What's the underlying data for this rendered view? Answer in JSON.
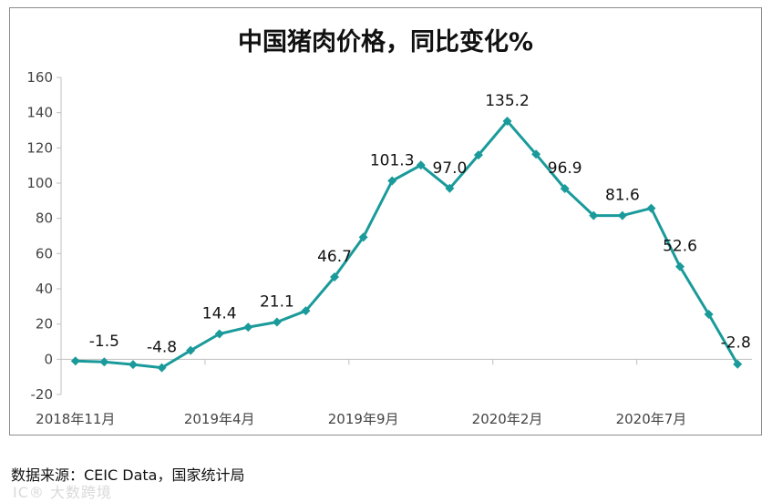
{
  "chart_data": {
    "type": "line",
    "title": "中国猪肉价格，同比变化%",
    "xlabel": "",
    "ylabel": "",
    "ylim": [
      -20,
      160
    ],
    "yticks": [
      "160",
      "140",
      "120",
      "100",
      "80",
      "60",
      "40",
      "20",
      "0",
      "-20"
    ],
    "x_tick_labels": [
      {
        "index": 0,
        "label": "2018年11月"
      },
      {
        "index": 5,
        "label": "2019年4月"
      },
      {
        "index": 10,
        "label": "2019年9月"
      },
      {
        "index": 15,
        "label": "2020年2月"
      },
      {
        "index": 20,
        "label": "2020年7月"
      }
    ],
    "x": [
      "2018-11",
      "2018-12",
      "2019-01",
      "2019-02",
      "2019-03",
      "2019-04",
      "2019-05",
      "2019-06",
      "2019-07",
      "2019-08",
      "2019-09",
      "2019-10",
      "2019-11",
      "2019-12",
      "2020-01",
      "2020-02",
      "2020-03",
      "2020-04",
      "2020-05",
      "2020-06",
      "2020-07",
      "2020-08",
      "2020-09",
      "2020-10"
    ],
    "series": [
      {
        "name": "",
        "color": "#1a9a9a",
        "values": [
          -1,
          -1.5,
          -3,
          -4.8,
          5,
          14.4,
          18.2,
          21.1,
          27.5,
          46.7,
          69.3,
          101.3,
          110.2,
          97.0,
          116.0,
          135.2,
          116.4,
          96.9,
          81.6,
          81.6,
          85.7,
          52.6,
          25.5,
          -2.8
        ]
      }
    ],
    "data_labels": [
      {
        "index": 1,
        "text": "-1.5"
      },
      {
        "index": 3,
        "text": "-4.8"
      },
      {
        "index": 5,
        "text": "14.4"
      },
      {
        "index": 7,
        "text": "21.1"
      },
      {
        "index": 9,
        "text": "46.7"
      },
      {
        "index": 11,
        "text": "101.3"
      },
      {
        "index": 13,
        "text": "97.0"
      },
      {
        "index": 15,
        "text": "135.2"
      },
      {
        "index": 17,
        "text": "96.9"
      },
      {
        "index": 19,
        "text": "81.6"
      },
      {
        "index": 21,
        "text": "52.6"
      },
      {
        "index": 23,
        "text": "-2.8"
      }
    ],
    "grid": false,
    "legend": "none"
  },
  "source_note": "数据来源：CEIC Data，国家统计局",
  "watermark": "IC® 大数跨境"
}
